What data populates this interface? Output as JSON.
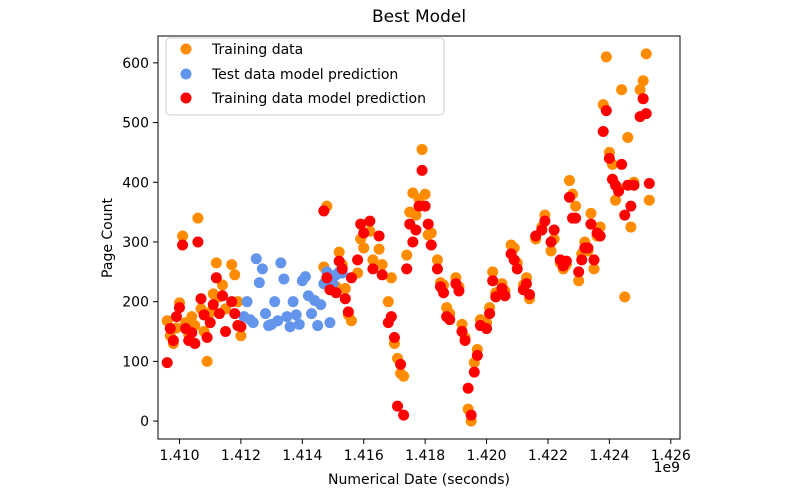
{
  "chart_data": {
    "type": "scatter",
    "title": "Best Model",
    "xlabel": "Numerical Date (seconds)",
    "ylabel": "Page Count",
    "x_offset_label": "1e9",
    "xlim": [
      1.4093,
      1.4263
    ],
    "ylim": [
      -30,
      645
    ],
    "x_ticks": [
      1.41,
      1.412,
      1.414,
      1.416,
      1.418,
      1.42,
      1.422,
      1.424,
      1.426
    ],
    "x_tick_labels": [
      "1.410",
      "1.412",
      "1.414",
      "1.416",
      "1.418",
      "1.420",
      "1.422",
      "1.424",
      "1.426"
    ],
    "y_ticks": [
      0,
      100,
      200,
      300,
      400,
      500,
      600
    ],
    "y_tick_labels": [
      "0",
      "100",
      "200",
      "300",
      "400",
      "500",
      "600"
    ],
    "grid": false,
    "legend_position": "top-left",
    "series": [
      {
        "name": "Training data",
        "color": "#ff8c00",
        "points": [
          [
            1.4096,
            168
          ],
          [
            1.4097,
            143
          ],
          [
            1.4098,
            130
          ],
          [
            1.4099,
            156
          ],
          [
            1.41,
            198
          ],
          [
            1.4101,
            310
          ],
          [
            1.4102,
            165
          ],
          [
            1.4103,
            145
          ],
          [
            1.4104,
            175
          ],
          [
            1.4105,
            160
          ],
          [
            1.4106,
            340
          ],
          [
            1.4107,
            188
          ],
          [
            1.4108,
            150
          ],
          [
            1.4109,
            100
          ],
          [
            1.411,
            182
          ],
          [
            1.4111,
            213
          ],
          [
            1.4112,
            265
          ],
          [
            1.4113,
            208
          ],
          [
            1.4114,
            228
          ],
          [
            1.4115,
            188
          ],
          [
            1.4117,
            262
          ],
          [
            1.4118,
            245
          ],
          [
            1.4119,
            200
          ],
          [
            1.412,
            143
          ],
          [
            1.4147,
            258
          ],
          [
            1.4148,
            360
          ],
          [
            1.4149,
            235
          ],
          [
            1.4151,
            225
          ],
          [
            1.4152,
            283
          ],
          [
            1.4153,
            262
          ],
          [
            1.4154,
            222
          ],
          [
            1.4155,
            178
          ],
          [
            1.4156,
            168
          ],
          [
            1.4158,
            248
          ],
          [
            1.4159,
            305
          ],
          [
            1.416,
            290
          ],
          [
            1.4162,
            318
          ],
          [
            1.4163,
            270
          ],
          [
            1.4165,
            288
          ],
          [
            1.4166,
            262
          ],
          [
            1.4168,
            200
          ],
          [
            1.4169,
            240
          ],
          [
            1.417,
            130
          ],
          [
            1.4171,
            105
          ],
          [
            1.4172,
            80
          ],
          [
            1.4173,
            75
          ],
          [
            1.4174,
            278
          ],
          [
            1.4175,
            350
          ],
          [
            1.4176,
            382
          ],
          [
            1.4177,
            345
          ],
          [
            1.4178,
            372
          ],
          [
            1.4179,
            455
          ],
          [
            1.418,
            380
          ],
          [
            1.4181,
            312
          ],
          [
            1.4182,
            315
          ],
          [
            1.4184,
            270
          ],
          [
            1.4185,
            232
          ],
          [
            1.4186,
            228
          ],
          [
            1.4187,
            190
          ],
          [
            1.4188,
            180
          ],
          [
            1.419,
            240
          ],
          [
            1.4191,
            225
          ],
          [
            1.4192,
            162
          ],
          [
            1.4193,
            140
          ],
          [
            1.4194,
            20
          ],
          [
            1.4195,
            0
          ],
          [
            1.4196,
            98
          ],
          [
            1.4197,
            120
          ],
          [
            1.4198,
            170
          ],
          [
            1.42,
            165
          ],
          [
            1.4201,
            190
          ],
          [
            1.4202,
            250
          ],
          [
            1.4203,
            215
          ],
          [
            1.4205,
            230
          ],
          [
            1.4206,
            218
          ],
          [
            1.4208,
            295
          ],
          [
            1.4209,
            290
          ],
          [
            1.421,
            265
          ],
          [
            1.4212,
            228
          ],
          [
            1.4213,
            240
          ],
          [
            1.4214,
            205
          ],
          [
            1.4216,
            305
          ],
          [
            1.4218,
            325
          ],
          [
            1.4219,
            345
          ],
          [
            1.4221,
            285
          ],
          [
            1.4222,
            305
          ],
          [
            1.4224,
            265
          ],
          [
            1.4225,
            255
          ],
          [
            1.4226,
            262
          ],
          [
            1.4227,
            403
          ],
          [
            1.4228,
            380
          ],
          [
            1.4229,
            360
          ],
          [
            1.423,
            235
          ],
          [
            1.4231,
            280
          ],
          [
            1.4232,
            300
          ],
          [
            1.4233,
            285
          ],
          [
            1.4234,
            348
          ],
          [
            1.4235,
            255
          ],
          [
            1.4236,
            310
          ],
          [
            1.4237,
            325
          ],
          [
            1.4238,
            530
          ],
          [
            1.4239,
            610
          ],
          [
            1.424,
            450
          ],
          [
            1.4241,
            430
          ],
          [
            1.4242,
            370
          ],
          [
            1.4243,
            390
          ],
          [
            1.4244,
            555
          ],
          [
            1.4245,
            208
          ],
          [
            1.4246,
            475
          ],
          [
            1.4247,
            325
          ],
          [
            1.4248,
            400
          ],
          [
            1.425,
            555
          ],
          [
            1.4251,
            570
          ],
          [
            1.4252,
            615
          ],
          [
            1.4253,
            370
          ]
        ]
      },
      {
        "name": "Test data model prediction",
        "color": "#6495ed",
        "points": [
          [
            1.4121,
            175
          ],
          [
            1.4122,
            200
          ],
          [
            1.4123,
            170
          ],
          [
            1.4124,
            165
          ],
          [
            1.4125,
            272
          ],
          [
            1.4126,
            232
          ],
          [
            1.4127,
            255
          ],
          [
            1.4128,
            180
          ],
          [
            1.4129,
            160
          ],
          [
            1.413,
            162
          ],
          [
            1.4131,
            200
          ],
          [
            1.4132,
            168
          ],
          [
            1.4133,
            265
          ],
          [
            1.4134,
            238
          ],
          [
            1.4135,
            175
          ],
          [
            1.4136,
            158
          ],
          [
            1.4137,
            200
          ],
          [
            1.4138,
            178
          ],
          [
            1.4139,
            162
          ],
          [
            1.414,
            235
          ],
          [
            1.4141,
            242
          ],
          [
            1.4142,
            210
          ],
          [
            1.4143,
            180
          ],
          [
            1.4144,
            202
          ],
          [
            1.4145,
            160
          ],
          [
            1.4146,
            195
          ],
          [
            1.4147,
            230
          ],
          [
            1.4148,
            250
          ],
          [
            1.4149,
            165
          ],
          [
            1.415,
            230
          ],
          [
            1.4151,
            245
          ],
          [
            1.4152,
            250
          ],
          [
            1.4153,
            248
          ]
        ]
      },
      {
        "name": "Training data model prediction",
        "color": "#ff0000",
        "points": [
          [
            1.4096,
            98
          ],
          [
            1.4097,
            155
          ],
          [
            1.4098,
            135
          ],
          [
            1.4099,
            175
          ],
          [
            1.41,
            190
          ],
          [
            1.4101,
            295
          ],
          [
            1.4102,
            155
          ],
          [
            1.4103,
            135
          ],
          [
            1.4104,
            148
          ],
          [
            1.4105,
            130
          ],
          [
            1.4106,
            300
          ],
          [
            1.4107,
            205
          ],
          [
            1.4108,
            178
          ],
          [
            1.4109,
            140
          ],
          [
            1.411,
            165
          ],
          [
            1.4111,
            195
          ],
          [
            1.4112,
            240
          ],
          [
            1.4113,
            180
          ],
          [
            1.4114,
            210
          ],
          [
            1.4115,
            150
          ],
          [
            1.4117,
            200
          ],
          [
            1.4118,
            180
          ],
          [
            1.4119,
            160
          ],
          [
            1.412,
            158
          ],
          [
            1.4147,
            352
          ],
          [
            1.4148,
            240
          ],
          [
            1.4149,
            220
          ],
          [
            1.4151,
            215
          ],
          [
            1.4152,
            268
          ],
          [
            1.4153,
            255
          ],
          [
            1.4154,
            205
          ],
          [
            1.4155,
            183
          ],
          [
            1.4156,
            240
          ],
          [
            1.4158,
            270
          ],
          [
            1.4159,
            330
          ],
          [
            1.416,
            315
          ],
          [
            1.4162,
            335
          ],
          [
            1.4163,
            255
          ],
          [
            1.4165,
            310
          ],
          [
            1.4166,
            245
          ],
          [
            1.4168,
            165
          ],
          [
            1.4169,
            175
          ],
          [
            1.417,
            140
          ],
          [
            1.4171,
            25
          ],
          [
            1.4172,
            95
          ],
          [
            1.4173,
            10
          ],
          [
            1.4174,
            255
          ],
          [
            1.4175,
            330
          ],
          [
            1.4176,
            300
          ],
          [
            1.4177,
            320
          ],
          [
            1.4178,
            360
          ],
          [
            1.4179,
            420
          ],
          [
            1.418,
            360
          ],
          [
            1.4181,
            330
          ],
          [
            1.4182,
            295
          ],
          [
            1.4184,
            255
          ],
          [
            1.4185,
            225
          ],
          [
            1.4186,
            215
          ],
          [
            1.4187,
            175
          ],
          [
            1.4188,
            170
          ],
          [
            1.419,
            230
          ],
          [
            1.4191,
            218
          ],
          [
            1.4192,
            150
          ],
          [
            1.4193,
            135
          ],
          [
            1.4194,
            55
          ],
          [
            1.4195,
            10
          ],
          [
            1.4196,
            82
          ],
          [
            1.4197,
            110
          ],
          [
            1.4198,
            160
          ],
          [
            1.42,
            155
          ],
          [
            1.4201,
            180
          ],
          [
            1.4202,
            235
          ],
          [
            1.4203,
            208
          ],
          [
            1.4205,
            222
          ],
          [
            1.4206,
            210
          ],
          [
            1.4208,
            280
          ],
          [
            1.4209,
            270
          ],
          [
            1.421,
            255
          ],
          [
            1.4212,
            220
          ],
          [
            1.4213,
            230
          ],
          [
            1.4214,
            212
          ],
          [
            1.4216,
            310
          ],
          [
            1.4218,
            320
          ],
          [
            1.4219,
            335
          ],
          [
            1.4221,
            300
          ],
          [
            1.4222,
            320
          ],
          [
            1.4224,
            270
          ],
          [
            1.4225,
            260
          ],
          [
            1.4226,
            268
          ],
          [
            1.4227,
            375
          ],
          [
            1.4228,
            340
          ],
          [
            1.4229,
            340
          ],
          [
            1.423,
            250
          ],
          [
            1.4231,
            270
          ],
          [
            1.4232,
            290
          ],
          [
            1.4233,
            290
          ],
          [
            1.4234,
            330
          ],
          [
            1.4235,
            270
          ],
          [
            1.4236,
            315
          ],
          [
            1.4237,
            310
          ],
          [
            1.4238,
            485
          ],
          [
            1.4239,
            520
          ],
          [
            1.424,
            440
          ],
          [
            1.4241,
            405
          ],
          [
            1.4242,
            395
          ],
          [
            1.4243,
            385
          ],
          [
            1.4244,
            430
          ],
          [
            1.4245,
            345
          ],
          [
            1.4246,
            395
          ],
          [
            1.4247,
            360
          ],
          [
            1.4248,
            395
          ],
          [
            1.425,
            510
          ],
          [
            1.4251,
            540
          ],
          [
            1.4252,
            515
          ],
          [
            1.4253,
            398
          ]
        ]
      }
    ]
  }
}
